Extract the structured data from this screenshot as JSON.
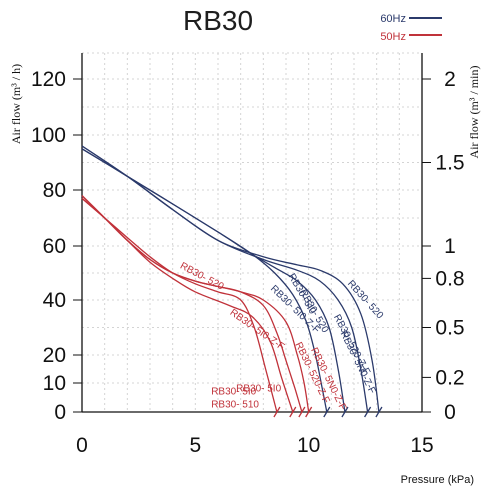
{
  "chart_data": {
    "type": "line",
    "title": "RB30",
    "xlabel": "Pressure (kPa)",
    "ylabel_left": "Air flow (m³ / h)",
    "ylabel_right": "Air flow (m³ / min)",
    "xlim": [
      0,
      15
    ],
    "ylim": [
      0,
      130
    ],
    "x_ticks": [
      0,
      5,
      10,
      15
    ],
    "y_ticks_left": [
      0,
      10,
      20,
      40,
      60,
      80,
      100,
      120
    ],
    "y_ticks_right": [
      {
        "label": "0",
        "value": 0
      },
      {
        "label": "0.2",
        "value": 12
      },
      {
        "label": "0.5",
        "value": 30
      },
      {
        "label": "0.8",
        "value": 48
      },
      {
        "label": "1",
        "value": 60
      },
      {
        "label": "1.5",
        "value": 90
      },
      {
        "label": "2",
        "value": 120
      }
    ],
    "grid": true,
    "legend_position": "top-right",
    "legend": [
      {
        "label": "60Hz",
        "color": "#2b3a6b"
      },
      {
        "label": "50Hz",
        "color": "#c0323a"
      }
    ],
    "series": [
      {
        "name": "RB30- 5I0",
        "group": "60Hz",
        "color": "#2b3a6b",
        "x": [
          0,
          2,
          4,
          6,
          7.5,
          8.5,
          9.3,
          9.9,
          10.3,
          10.6,
          10.8
        ],
        "y": [
          95,
          85,
          75,
          65,
          57,
          50,
          42,
          32,
          20,
          8,
          0
        ],
        "label": {
          "x": 9.1,
          "y": 49,
          "angle": 60
        }
      },
      {
        "name": "RB30- 5I0-Z-F",
        "group": "60Hz",
        "color": "#2b3a6b",
        "x": [
          0,
          2,
          4,
          6,
          7.5,
          8.5,
          9.5,
          10.3,
          10.9,
          11.3,
          11.6
        ],
        "y": [
          95,
          85,
          75,
          65,
          57,
          52,
          47,
          40,
          30,
          15,
          0
        ],
        "label": {
          "x": 8.3,
          "y": 44,
          "angle": 44
        }
      },
      {
        "name": "RB30- 520",
        "group": "60Hz",
        "color": "#2b3a6b",
        "x": [
          0,
          2,
          4,
          6,
          8,
          9.5,
          10.5,
          11.5,
          12.3,
          12.8,
          13.1
        ],
        "y": [
          96,
          85,
          73,
          62,
          56,
          53,
          51,
          46,
          35,
          18,
          0
        ],
        "label": {
          "x": 11.7,
          "y": 46,
          "angle": 48
        }
      },
      {
        "name": "RB30- 520-Z-F",
        "group": "60Hz",
        "color": "#2b3a6b",
        "x": [
          0,
          2,
          4,
          6,
          8,
          9.5,
          10.5,
          11.3,
          11.9,
          12.3,
          12.6
        ],
        "y": [
          96,
          85,
          73,
          62,
          55,
          51,
          47,
          40,
          30,
          15,
          0
        ],
        "label": {
          "x": 11.1,
          "y": 34,
          "angle": 62
        }
      },
      {
        "name": "RB30- 5I0",
        "group": "50Hz",
        "color": "#c0323a",
        "x": [
          0,
          1,
          2,
          3,
          4,
          5,
          6,
          7,
          7.6,
          8.1,
          8.6
        ],
        "y": [
          77,
          70,
          63,
          56,
          50,
          46,
          43,
          40,
          30,
          15,
          0
        ],
        "label": {
          "x": 6.8,
          "y": 7,
          "angle": 0
        }
      },
      {
        "name": "RB30- 5I0-Z-F",
        "group": "50Hz",
        "color": "#c0323a",
        "x": [
          0,
          1,
          2,
          3,
          4,
          5,
          6.5,
          7.5,
          8.3,
          8.8,
          9.3
        ],
        "y": [
          77,
          70,
          62,
          54,
          48,
          43,
          38,
          34,
          25,
          12,
          0
        ],
        "label": {
          "x": 6.5,
          "y": 35,
          "angle": 35
        }
      },
      {
        "name": "RB30- 520",
        "group": "50Hz",
        "color": "#c0323a",
        "x": [
          0,
          1,
          2,
          3,
          4,
          5,
          6,
          7,
          8,
          9,
          9.5,
          9.8,
          10
        ],
        "y": [
          78,
          70,
          62,
          55,
          50,
          47,
          45,
          43,
          40,
          32,
          20,
          10,
          0
        ],
        "label": {
          "x": 4.3,
          "y": 52,
          "angle": 28
        }
      },
      {
        "name": "RB30- 520-Z-F",
        "group": "50Hz",
        "color": "#c0323a",
        "x": [
          0,
          1,
          2,
          3,
          4,
          5,
          6,
          7,
          8,
          8.6,
          9.0,
          9.4,
          9.7
        ],
        "y": [
          78,
          70,
          62,
          55,
          50,
          47,
          45,
          43,
          38,
          28,
          18,
          8,
          0
        ],
        "label": {
          "x": 9.4,
          "y": 24,
          "angle": 64
        }
      },
      {
        "name": "RB30- 5I0",
        "group": "50Hz-lower",
        "color": "#c0323a",
        "x": [],
        "y": [],
        "label": {
          "x": 5.7,
          "y": 6,
          "angle": 0
        }
      },
      {
        "name": "RB30- 510",
        "group": "50Hz-lower",
        "color": "#c0323a",
        "x": [],
        "y": [],
        "label": {
          "x": 5.7,
          "y": 1.5,
          "angle": 0
        }
      },
      {
        "name": "RB30- 5N0-Z-F",
        "group": "50Hz-lower",
        "color": "#c0323a",
        "x": [],
        "y": [],
        "label": {
          "x": 10.1,
          "y": 22,
          "angle": 64
        }
      },
      {
        "name": "RB30- 5N0-Z-F",
        "group": "60Hz-lower",
        "color": "#2b3a6b",
        "x": [],
        "y": [],
        "label": {
          "x": 11.4,
          "y": 28,
          "angle": 64
        }
      },
      {
        "name": "RB30- 520",
        "group": "60Hz-lower",
        "color": "#2b3a6b",
        "x": [],
        "y": [],
        "label": {
          "x": 9.6,
          "y": 43,
          "angle": 60
        }
      }
    ]
  }
}
